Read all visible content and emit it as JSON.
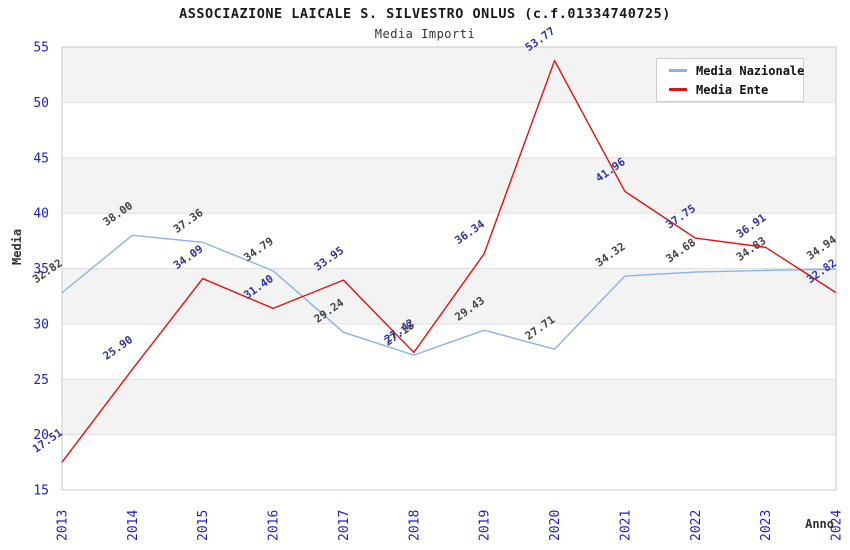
{
  "chart_data": {
    "type": "line",
    "title": "ASSOCIAZIONE LAICALE S. SILVESTRO ONLUS (c.f.01334740725)",
    "subtitle": "Media Importi",
    "xlabel": "Anno",
    "ylabel": "Media",
    "categories": [
      "2013",
      "2014",
      "2015",
      "2016",
      "2017",
      "2018",
      "2019",
      "2020",
      "2021",
      "2022",
      "2023",
      "2024"
    ],
    "series": [
      {
        "name": "Media Nazionale",
        "color": "#8ab4e8",
        "label_color": "#444444",
        "values": [
          32.82,
          38.0,
          37.36,
          34.79,
          29.24,
          27.18,
          29.43,
          27.71,
          34.32,
          34.68,
          34.83,
          34.94
        ]
      },
      {
        "name": "Media Ente",
        "color": "#e51212",
        "label_color": "#3333aa",
        "values": [
          17.51,
          25.9,
          34.09,
          31.4,
          33.95,
          27.42,
          36.34,
          53.77,
          41.96,
          37.75,
          36.91,
          32.82
        ]
      }
    ],
    "ylim": [
      15,
      55
    ],
    "yticks": [
      15,
      20,
      25,
      30,
      35,
      40,
      45,
      50,
      55
    ],
    "grid": true,
    "legend_position": "top-right",
    "colors": {
      "tick_labels": "#1f1fd0",
      "band_gray": "#f3f3f3",
      "band_white": "#ffffff",
      "grid_line": "#e0e0e0",
      "plot_border": "#c8c8c8"
    }
  }
}
